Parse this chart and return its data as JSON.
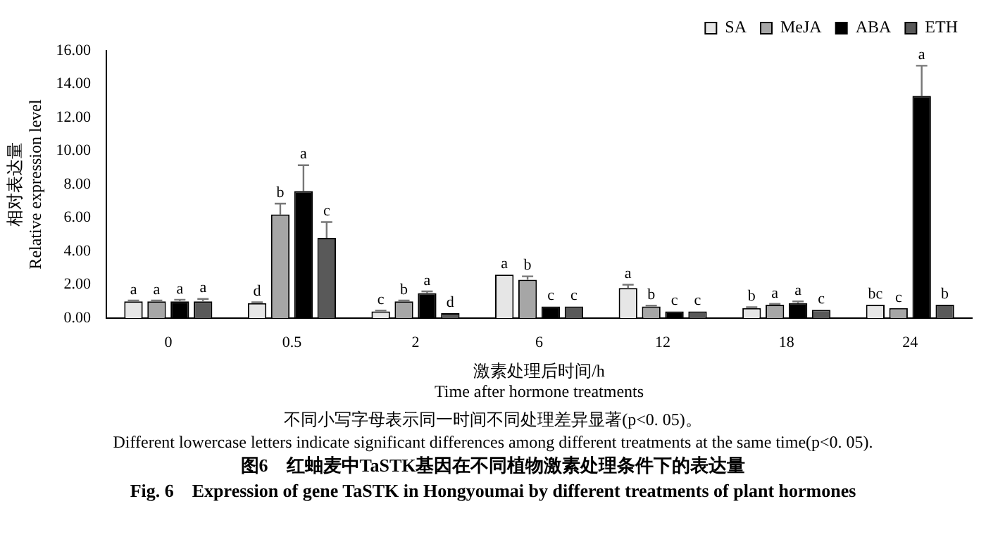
{
  "chart_data": {
    "type": "bar",
    "title": "图6　红蚰麦中TaSTK基因在不同植物激素处理条件下的表达量",
    "subtitle": "Fig. 6　Expression of gene TaSTK in Hongyoumai by different treatments of plant hormones",
    "xlabel": "激素处理后时间/h\nTime after hormone treatments",
    "ylabel": "相对表达量\nRelative expression level",
    "annotations": [
      "不同小写字母表示同一时间不同处理差异显著(p<0. 05)。",
      "Different lowercase letters indicate significant differences among different treatments at the same time(p<0. 05)."
    ],
    "categories": [
      "0",
      "0.5",
      "2",
      "6",
      "12",
      "18",
      "24"
    ],
    "series": [
      {
        "name": "SA",
        "color": "#e6e6e6",
        "values": [
          1.0,
          0.9,
          0.4,
          2.6,
          1.8,
          0.6,
          0.8
        ],
        "errors": [
          0.05,
          0.05,
          0.05,
          null,
          0.2,
          0.05,
          null
        ],
        "value_labels": [
          "a",
          "d",
          "c",
          "a",
          "a",
          "b",
          "bc"
        ]
      },
      {
        "name": "MeJA",
        "color": "#a6a6a6",
        "values": [
          1.0,
          6.2,
          1.0,
          2.3,
          0.7,
          0.8,
          0.6
        ],
        "errors": [
          0.05,
          0.65,
          0.05,
          0.2,
          0.05,
          0.05,
          null
        ],
        "value_labels": [
          "a",
          "b",
          "b",
          "b",
          "b",
          "a",
          "c"
        ]
      },
      {
        "name": "ABA",
        "color": "#000000",
        "values": [
          1.0,
          7.6,
          1.5,
          0.7,
          0.4,
          0.9,
          13.3
        ],
        "errors": [
          0.1,
          1.55,
          0.1,
          null,
          null,
          0.1,
          1.8
        ],
        "value_labels": [
          "a",
          "a",
          "a",
          "c",
          "c",
          "a",
          "a"
        ]
      },
      {
        "name": "ETH",
        "color": "#595959",
        "values": [
          1.0,
          4.8,
          0.3,
          0.7,
          0.4,
          0.5,
          0.8
        ],
        "errors": [
          0.15,
          0.95,
          null,
          null,
          null,
          null,
          null
        ],
        "value_labels": [
          "a",
          "c",
          "d",
          "c",
          "c",
          "c",
          "b"
        ]
      }
    ],
    "ylim": [
      0,
      16
    ],
    "yticks": [
      {
        "value": 0,
        "label": "0.00"
      },
      {
        "value": 2,
        "label": "2.00"
      },
      {
        "value": 4,
        "label": "4.00"
      },
      {
        "value": 6,
        "label": "6.00"
      },
      {
        "value": 8,
        "label": "8.00"
      },
      {
        "value": 10,
        "label": "10.00"
      },
      {
        "value": 12,
        "label": "12.00"
      },
      {
        "value": 14,
        "label": "14.00"
      },
      {
        "value": 16,
        "label": "16.00"
      }
    ],
    "grid": false,
    "legend": "top right"
  }
}
